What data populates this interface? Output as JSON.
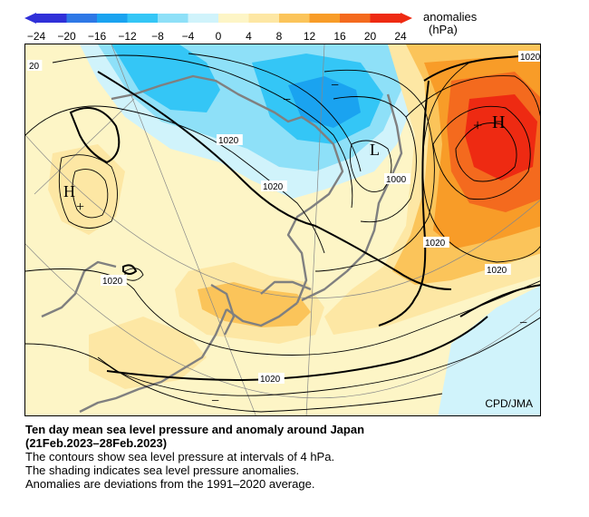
{
  "colorbar": {
    "ticks": [
      "−24",
      "−20",
      "−16",
      "−12",
      "−8",
      "−4",
      "0",
      "4",
      "8",
      "12",
      "16",
      "20",
      "24"
    ],
    "colors": [
      "#3030d8",
      "#2e78e6",
      "#1aa3f0",
      "#34c6f6",
      "#8ee0f8",
      "#d0f3fb",
      "#fdf5c6",
      "#fde7a4",
      "#fbc45a",
      "#f89c28",
      "#f46a1e",
      "#ee2a12"
    ],
    "label_line1": "anomalies",
    "label_line2": "(hPa)"
  },
  "map": {
    "isobar_labels": [
      "1020",
      "1020",
      "1000",
      "1020",
      "1020",
      "1020",
      "1020",
      "1020",
      "20"
    ],
    "pressure_centers": [
      "H",
      "H",
      "L"
    ],
    "anomaly_signs": [
      "+",
      "+",
      "−",
      "−",
      "−",
      "−"
    ],
    "credit": "CPD/JMA"
  },
  "caption": {
    "title_line1": "Ten day mean sea level pressure and anomaly around Japan",
    "title_line2": "(21Feb.2023–28Feb.2023)",
    "line1": "The contours show sea level pressure at intervals of 4 hPa.",
    "line2": "The shading indicates sea level pressure anomalies.",
    "line3": "Anomalies are deviations from the 1991–2020 average."
  }
}
